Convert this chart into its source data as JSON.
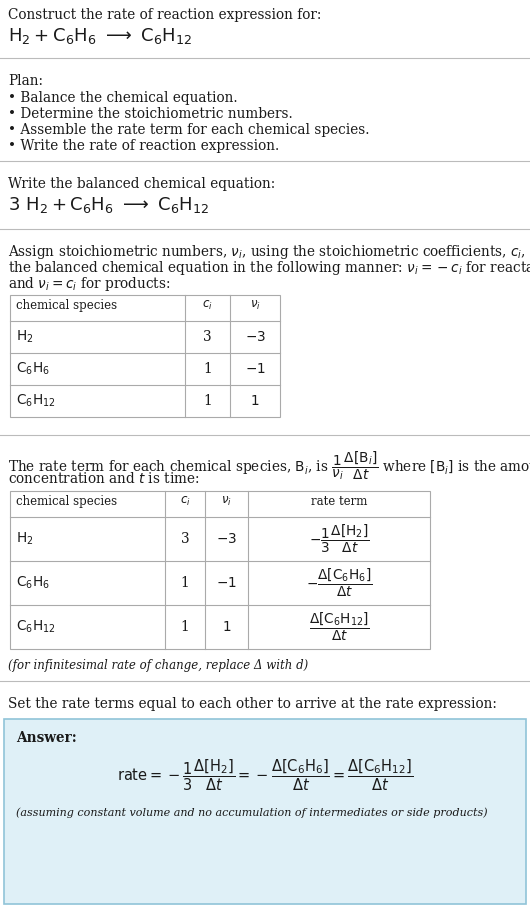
{
  "bg_color": "#ffffff",
  "text_color": "#1a1a1a",
  "answer_bg": "#dff0f7",
  "answer_border": "#90c4d8",
  "section_line_color": "#bbbbbb",
  "title_text": "Construct the rate of reaction expression for:",
  "plan_header": "Plan:",
  "plan_items": [
    "• Balance the chemical equation.",
    "• Determine the stoichiometric numbers.",
    "• Assemble the rate term for each chemical species.",
    "• Write the rate of reaction expression."
  ],
  "balanced_header": "Write the balanced chemical equation:",
  "set_equal_text": "Set the rate terms equal to each other to arrive at the rate expression:",
  "answer_label": "Answer:",
  "answer_note": "(assuming constant volume and no accumulation of intermediates or side products)",
  "infinitesimal_note": "(for infinitesimal rate of change, replace Δ with d)"
}
